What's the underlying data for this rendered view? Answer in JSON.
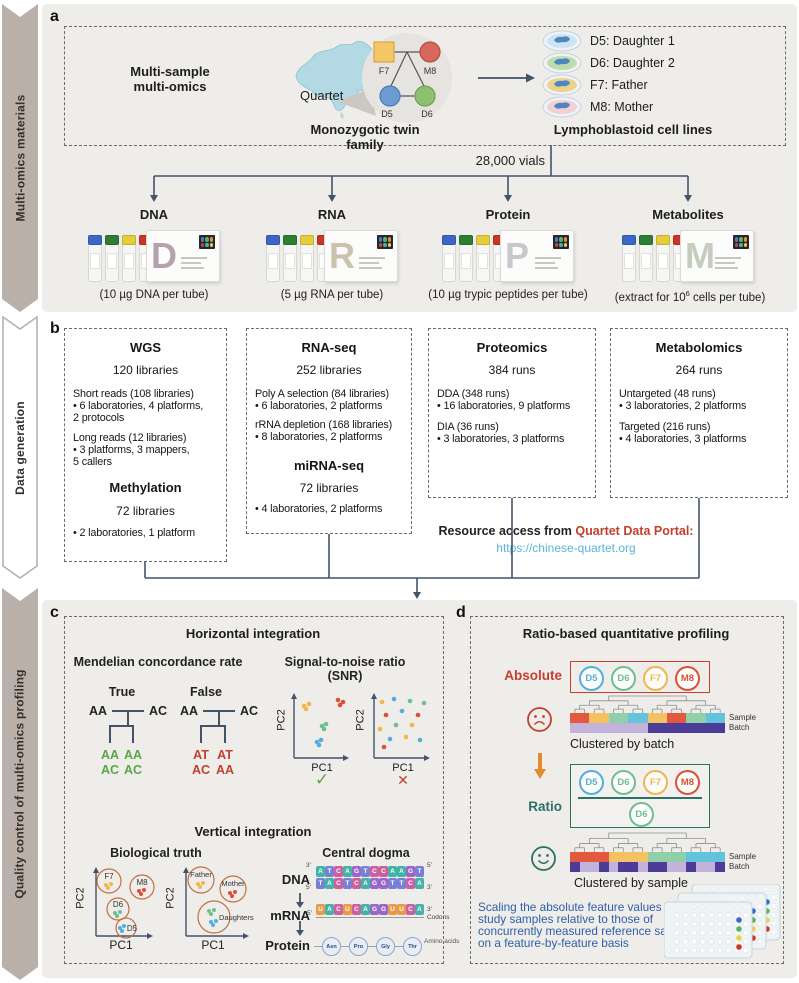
{
  "palette": {
    "navy": "#42536a",
    "red": "#c2402e",
    "green": "#5aa546",
    "teal": "#2e6f66",
    "orange": "#e28a2f",
    "blue_link": "#58b6d6",
    "blue_note": "#2e5fa9",
    "d5": "#54aedd",
    "d6": "#6fbe90",
    "f7": "#f0b64c",
    "m8": "#dc5037",
    "purple_light": "#c3b3da",
    "purple_dark": "#4c3b97",
    "heat_r": "#e2593d",
    "heat_y": "#f4c163",
    "heat_g": "#8fcfa9",
    "heat_b": "#63c3dd",
    "banner": "#b9b0a9",
    "nt_a": "#42b3a7",
    "nt_t": "#7a7fd6",
    "nt_c": "#cc5fa0",
    "nt_g": "#9a66c9",
    "nt_u": "#e89a4a"
  },
  "sidebar": {
    "sections": [
      "Multi-omics materials",
      "Data generation",
      "Quality control of multi-omics profiling"
    ]
  },
  "panel_a": {
    "label": "a",
    "intro_line1": "Multi-sample",
    "intro_line2": "multi-omics",
    "map_label": "Quartet",
    "pedigree": {
      "f7": "F7",
      "m8": "M8",
      "d5": "D5",
      "d6": "D6"
    },
    "family_caption": "Monozygotic twin family",
    "cells_caption": "Lymphoblastoid cell lines",
    "cell_lines": [
      {
        "id": "D5",
        "label": "D5: Daughter 1"
      },
      {
        "id": "D6",
        "label": "D6: Daughter 2"
      },
      {
        "id": "F7",
        "label": "F7: Father"
      },
      {
        "id": "M8",
        "label": "M8: Mother"
      }
    ],
    "vials_label": "28,000 vials",
    "materials": [
      {
        "name": "DNA",
        "letter": "D",
        "caption": "(10 µg DNA per tube)"
      },
      {
        "name": "RNA",
        "letter": "R",
        "caption": "(5 µg RNA per tube)"
      },
      {
        "name": "Protein",
        "letter": "P",
        "caption": "(10 µg trypic peptides per tube)"
      },
      {
        "name": "Metabolites",
        "letter": "M",
        "caption_pre": "(extract for 10",
        "caption_sup": "6",
        "caption_post": " cells per tube)"
      }
    ]
  },
  "panel_b": {
    "label": "b",
    "wgs": {
      "title": "WGS",
      "sub": "120 libraries",
      "p1h": "Short reads (108 libraries)",
      "p1b1": "• 6 laboratories, 4 platforms,",
      "p1b2": "2 protocols",
      "p2h": "Long reads (12 libraries)",
      "p2b1": "• 3 platforms, 3 mappers,",
      "p2b2": "5 callers",
      "title2": "Methylation",
      "sub2": "72 libraries",
      "p3b": "• 2 laboratories, 1 platform"
    },
    "rna": {
      "title": "RNA-seq",
      "sub": "252 libraries",
      "p1h": "Poly A selection (84 libraries)",
      "p1b": "• 6 laboratories, 2 platforms",
      "p2h": "rRNA depletion (168 libraries)",
      "p2b": "• 8 laboratories, 2 platforms",
      "title2": "miRNA-seq",
      "sub2": "72 libraries",
      "p3b": "• 4 laboratories, 2 platforms"
    },
    "prot": {
      "title": "Proteomics",
      "sub": "384 runs",
      "p1h": "DDA (348 runs)",
      "p1b": "• 16 laboratories, 9 platforms",
      "p2h": "DIA (36 runs)",
      "p2b": "• 3 laboratories, 3 platforms"
    },
    "metab": {
      "title": "Metabolomics",
      "sub": "264 runs",
      "p1h": "Untargeted (48 runs)",
      "p1b": "• 3 laboratories, 2 platforms",
      "p2h": "Targeted (216 runs)",
      "p2b": "• 4 laboratories, 3 platforms"
    },
    "resource_prefix": "Resource access from ",
    "resource_portal": "Quartet Data Portal:",
    "resource_url": "https://chinese-quartet.org"
  },
  "panel_c": {
    "label": "c",
    "h_title": "Horizontal integration",
    "mendelian": {
      "title": "Mendelian concordance rate",
      "true_label": "True",
      "false_label": "False",
      "true_p1": "AA",
      "true_p2": "AC",
      "true_c1": [
        "AA",
        "AC"
      ],
      "true_c2": [
        "AA",
        "AC"
      ],
      "false_p1": "AA",
      "false_p2": "AC",
      "false_c1": [
        "AT",
        "AC"
      ],
      "false_c2": [
        "AT",
        "AA"
      ]
    },
    "snr": {
      "title": "Signal-to-noise ratio",
      "title2": "(SNR)",
      "pc1": "PC1",
      "pc2": "PC2",
      "pass": "✓",
      "fail": "✕"
    },
    "v_title": "Vertical integration",
    "bio": {
      "title": "Biological truth",
      "pc1": "PC1",
      "pc2": "PC2",
      "labels1": [
        "F7",
        "M8",
        "D6",
        "D5"
      ],
      "labels2": [
        "Father",
        "Mother",
        "Daughters"
      ]
    },
    "dogma": {
      "title": "Central dogma",
      "dna_label": "DNA",
      "mrna_label": "mRNA",
      "protein_label": "Protein",
      "dna_top": "ATCAGTCCAAGT",
      "dna_bottom": "TACTCAGGTTCA",
      "mrna": "UACUCAGGUUCA",
      "aas": [
        "Asn",
        "Pro",
        "Gly",
        "Thr"
      ],
      "codons_label": "Codons",
      "aa_label": "Amino acids",
      "five": "5′",
      "three": "3′"
    }
  },
  "panel_d": {
    "label": "d",
    "title": "Ratio-based quantitative profiling",
    "absolute_label": "Absolute",
    "ratio_label": "Ratio",
    "samples": [
      "D5",
      "D6",
      "F7",
      "M8"
    ],
    "denominator": "D6",
    "sample_tag": "Sample",
    "batch_tag": "Batch",
    "clustered_batch": "Clustered by batch",
    "clustered_sample": "Clustered by sample",
    "note": "Scaling the absolute feature values of study samples relative to those of concurrently measured reference sample on a feature-by-feature basis",
    "heat_batch": {
      "sample": [
        "r",
        "r",
        "y",
        "y",
        "g",
        "g",
        "b",
        "b",
        "y",
        "y",
        "r",
        "r",
        "g",
        "g",
        "b",
        "b"
      ],
      "batch": [
        "L",
        "L",
        "L",
        "L",
        "L",
        "L",
        "L",
        "L",
        "D",
        "D",
        "D",
        "D",
        "D",
        "D",
        "D",
        "D"
      ]
    },
    "heat_sample": {
      "sample": [
        "r",
        "r",
        "r",
        "r",
        "y",
        "y",
        "y",
        "y",
        "g",
        "g",
        "g",
        "g",
        "b",
        "b",
        "b",
        "b"
      ],
      "batch": [
        "D",
        "L",
        "L",
        "D",
        "L",
        "D",
        "D",
        "L",
        "D",
        "D",
        "L",
        "L",
        "D",
        "L",
        "L",
        "D"
      ]
    }
  }
}
